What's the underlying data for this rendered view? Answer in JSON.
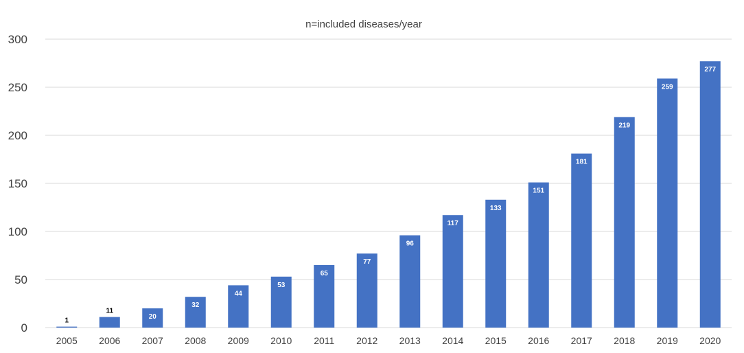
{
  "chart_data": {
    "type": "bar",
    "title": "n=included diseases/year",
    "xlabel": "",
    "ylabel": "",
    "categories": [
      "2005",
      "2006",
      "2007",
      "2008",
      "2009",
      "2010",
      "2011",
      "2012",
      "2013",
      "2014",
      "2015",
      "2016",
      "2017",
      "2018",
      "2019",
      "2020"
    ],
    "values": [
      1,
      11,
      20,
      32,
      44,
      53,
      65,
      77,
      96,
      117,
      133,
      151,
      181,
      219,
      259,
      277
    ],
    "ylim": [
      0,
      300
    ],
    "yticks": [
      0,
      50,
      100,
      150,
      200,
      250,
      300
    ],
    "grid": true,
    "legend": "none",
    "data_labels": true,
    "colors": {
      "bar": "#4472c4",
      "grid": "#d9d9d9",
      "text": "#404040"
    }
  }
}
